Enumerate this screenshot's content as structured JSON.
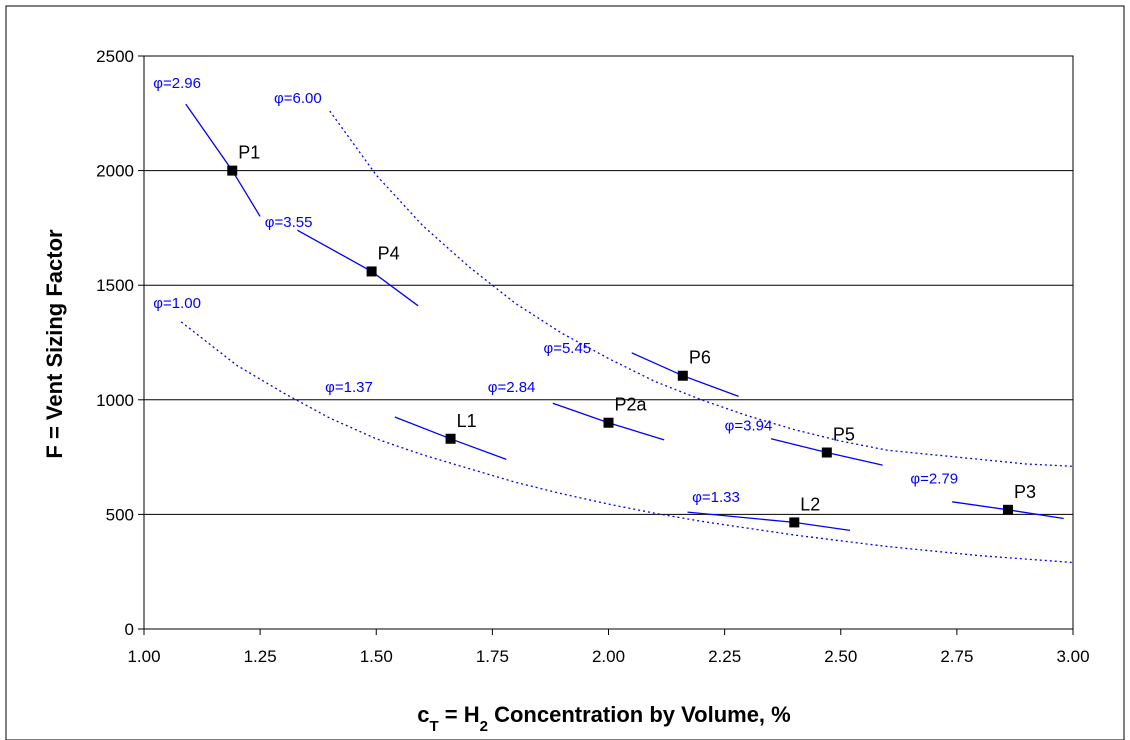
{
  "chart_data": {
    "type": "scatter",
    "title": "",
    "xlabel": {
      "main": "c",
      "sub1": "T",
      "mid": " = H",
      "sub2": "2",
      "rest": " Concentration by Volume, %"
    },
    "ylabel": "F = Vent Sizing Factor",
    "xlim": [
      1.0,
      3.0
    ],
    "ylim": [
      0,
      2500
    ],
    "xticks": [
      1.0,
      1.25,
      1.5,
      1.75,
      2.0,
      2.25,
      2.5,
      2.75,
      3.0
    ],
    "xtick_labels": [
      "1.00",
      "1.25",
      "1.50",
      "1.75",
      "2.00",
      "2.25",
      "2.50",
      "2.75",
      "3.00"
    ],
    "yticks": [
      0,
      500,
      1000,
      1500,
      2000,
      2500
    ],
    "ytick_labels": [
      "0",
      "500",
      "1000",
      "1500",
      "2000",
      "2500"
    ],
    "grid": "horizontal",
    "colors": {
      "points": "#000000",
      "lines": "#0000ff",
      "frame": "#000000",
      "grid": "#000000"
    },
    "points": [
      {
        "label": "P1",
        "x": 1.19,
        "y": 2000
      },
      {
        "label": "P4",
        "x": 1.49,
        "y": 1560
      },
      {
        "label": "L1",
        "x": 1.66,
        "y": 830
      },
      {
        "label": "P2a",
        "x": 2.0,
        "y": 900
      },
      {
        "label": "P6",
        "x": 2.16,
        "y": 1105
      },
      {
        "label": "P5",
        "x": 2.47,
        "y": 770
      },
      {
        "label": "L2",
        "x": 2.4,
        "y": 465
      },
      {
        "label": "P3",
        "x": 2.86,
        "y": 520
      }
    ],
    "iso_lines": [
      {
        "label": "φ=2.96",
        "label_x": 1.02,
        "label_y": 2360,
        "x": [
          1.09,
          1.19,
          1.25
        ],
        "y": [
          2290,
          2000,
          1800
        ]
      },
      {
        "label": "φ=3.55",
        "label_x": 1.26,
        "label_y": 1755,
        "x": [
          1.33,
          1.49,
          1.59
        ],
        "y": [
          1740,
          1560,
          1410
        ]
      },
      {
        "label": "φ=1.37",
        "label_x": 1.39,
        "label_y": 1035,
        "x": [
          1.54,
          1.66,
          1.78
        ],
        "y": [
          925,
          830,
          740
        ]
      },
      {
        "label": "φ=2.84",
        "label_x": 1.74,
        "label_y": 1035,
        "x": [
          1.88,
          2.0,
          2.12
        ],
        "y": [
          985,
          900,
          825
        ]
      },
      {
        "label": "φ=5.45",
        "label_x": 1.86,
        "label_y": 1205,
        "x": [
          2.05,
          2.16,
          2.28
        ],
        "y": [
          1205,
          1105,
          1015
        ]
      },
      {
        "label": "φ=3.94",
        "label_x": 2.25,
        "label_y": 865,
        "x": [
          2.35,
          2.47,
          2.59
        ],
        "y": [
          830,
          770,
          715
        ]
      },
      {
        "label": "φ=1.33",
        "label_x": 2.18,
        "label_y": 555,
        "x": [
          2.17,
          2.4,
          2.52
        ],
        "y": [
          510,
          465,
          430
        ]
      },
      {
        "label": "φ=2.79",
        "label_x": 2.65,
        "label_y": 635,
        "x": [
          2.74,
          2.86,
          2.98
        ],
        "y": [
          555,
          520,
          482
        ]
      }
    ],
    "dotted_curves": [
      {
        "label": "φ=6.00",
        "label_x": 1.28,
        "label_y": 2295,
        "x": [
          1.4,
          1.5,
          1.6,
          1.7,
          1.8,
          1.9,
          2.0,
          2.1,
          2.2,
          2.3,
          2.4,
          2.5,
          2.6,
          2.7,
          2.8,
          2.9,
          3.0
        ],
        "y": [
          2260,
          1980,
          1760,
          1580,
          1420,
          1290,
          1180,
          1080,
          1000,
          930,
          870,
          820,
          780,
          760,
          740,
          720,
          710
        ]
      },
      {
        "label": "φ=1.00",
        "label_x": 1.02,
        "label_y": 1400,
        "x": [
          1.08,
          1.2,
          1.3,
          1.4,
          1.5,
          1.6,
          1.7,
          1.8,
          1.9,
          2.0,
          2.1,
          2.2,
          2.3,
          2.4,
          2.5,
          2.6,
          2.7,
          2.8,
          2.9,
          3.0
        ],
        "y": [
          1340,
          1150,
          1030,
          920,
          830,
          760,
          700,
          640,
          590,
          545,
          505,
          470,
          440,
          410,
          385,
          360,
          340,
          320,
          305,
          290
        ]
      }
    ]
  }
}
